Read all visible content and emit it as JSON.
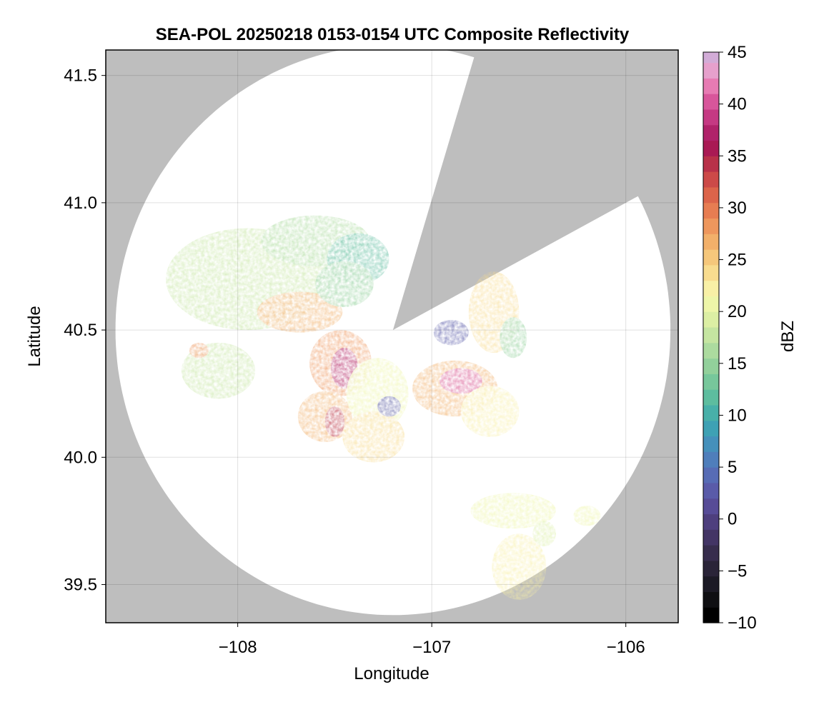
{
  "chart_data": {
    "type": "heatmap",
    "title": "SEA-POL 20250218 0153-0154 UTC Composite Reflectivity",
    "xlabel": "Longitude",
    "ylabel": "Latitude",
    "xlim": [
      -108.68,
      -105.73
    ],
    "ylim": [
      39.35,
      41.6
    ],
    "xticks": [
      -108,
      -107,
      -106
    ],
    "xtick_labels": [
      "−108",
      "−107",
      "−106"
    ],
    "yticks": [
      39.5,
      40.0,
      40.5,
      41.0,
      41.5
    ],
    "ytick_labels": [
      "39.5",
      "40.0",
      "40.5",
      "41.0",
      "41.5"
    ],
    "grid": true,
    "background_color": "#bebebe",
    "coverage_color": "#ffffff",
    "radar": {
      "center": [
        -107.2,
        40.5
      ],
      "range_lat_deg": 1.12,
      "range_lon_deg": 1.43,
      "blocked_sector_1": {
        "from_bearing_deg": 17,
        "to_bearing_deg": 30
      },
      "blocked_sector_2": {
        "from_bearing_deg": 30,
        "to_bearing_deg": 62
      }
    },
    "colorbar": {
      "label": "dBZ",
      "min": -10,
      "max": 45,
      "step": 1.5,
      "ticks": [
        -10,
        -5,
        0,
        5,
        10,
        15,
        20,
        25,
        30,
        35,
        40,
        45
      ],
      "tick_labels": [
        "−10",
        "−5",
        "0",
        "5",
        "10",
        "15",
        "20",
        "25",
        "30",
        "35",
        "40",
        "45"
      ],
      "colors": [
        "#000000",
        "#0f0f12",
        "#1c1a25",
        "#2a2438",
        "#372d4d",
        "#433565",
        "#4e3f7e",
        "#574c97",
        "#5a5ba9",
        "#576cb5",
        "#4f7ebb",
        "#4590bb",
        "#3ea1b4",
        "#48b0a9",
        "#5dbd9f",
        "#77c79b",
        "#92d09b",
        "#acdb9f",
        "#c5e5a1",
        "#dcefa4",
        "#eef6a9",
        "#f8f0a6",
        "#f8dc8f",
        "#f5c77b",
        "#f2b06a",
        "#ee975d",
        "#e77d52",
        "#dc644a",
        "#cc4a48",
        "#b83149",
        "#a91a54",
        "#b0226a",
        "#c53983",
        "#d8569b",
        "#e77bb3",
        "#e6a0cc",
        "#d2acd7",
        "#b68ac3",
        "#9865ae",
        "#7b4597",
        "#5f2a7d",
        "#451462",
        "#320645"
      ]
    },
    "echo_regions": [
      {
        "lon": -107.95,
        "lat": 40.7,
        "rlon": 0.42,
        "rlat": 0.2,
        "dbz": 18
      },
      {
        "lon": -107.68,
        "lat": 40.57,
        "rlon": 0.22,
        "rlat": 0.08,
        "dbz": 26
      },
      {
        "lon": -107.6,
        "lat": 40.85,
        "rlon": 0.28,
        "rlat": 0.1,
        "dbz": 16
      },
      {
        "lon": -107.38,
        "lat": 40.78,
        "rlon": 0.16,
        "rlat": 0.1,
        "dbz": 11
      },
      {
        "lon": -107.45,
        "lat": 40.68,
        "rlon": 0.15,
        "rlat": 0.09,
        "dbz": 15
      },
      {
        "lon": -107.47,
        "lat": 40.37,
        "rlon": 0.16,
        "rlat": 0.13,
        "dbz": 28
      },
      {
        "lon": -107.45,
        "lat": 40.35,
        "rlon": 0.07,
        "rlat": 0.08,
        "dbz": 37
      },
      {
        "lon": -107.55,
        "lat": 40.16,
        "rlon": 0.14,
        "rlat": 0.1,
        "dbz": 26
      },
      {
        "lon": -107.5,
        "lat": 40.14,
        "rlon": 0.05,
        "rlat": 0.06,
        "dbz": 34
      },
      {
        "lon": -107.28,
        "lat": 40.25,
        "rlon": 0.16,
        "rlat": 0.14,
        "dbz": 21
      },
      {
        "lon": -107.3,
        "lat": 40.08,
        "rlon": 0.16,
        "rlat": 0.1,
        "dbz": 24
      },
      {
        "lon": -107.22,
        "lat": 40.2,
        "rlon": 0.06,
        "rlat": 0.04,
        "dbz": 3
      },
      {
        "lon": -106.88,
        "lat": 40.27,
        "rlon": 0.22,
        "rlat": 0.11,
        "dbz": 27
      },
      {
        "lon": -106.85,
        "lat": 40.3,
        "rlon": 0.11,
        "rlat": 0.05,
        "dbz": 40
      },
      {
        "lon": -106.7,
        "lat": 40.18,
        "rlon": 0.15,
        "rlat": 0.1,
        "dbz": 22
      },
      {
        "lon": -106.68,
        "lat": 40.57,
        "rlon": 0.13,
        "rlat": 0.16,
        "dbz": 23
      },
      {
        "lon": -106.9,
        "lat": 40.49,
        "rlon": 0.09,
        "rlat": 0.05,
        "dbz": 2
      },
      {
        "lon": -106.58,
        "lat": 40.47,
        "rlon": 0.07,
        "rlat": 0.08,
        "dbz": 14
      },
      {
        "lon": -108.1,
        "lat": 40.34,
        "rlon": 0.19,
        "rlat": 0.11,
        "dbz": 17
      },
      {
        "lon": -108.2,
        "lat": 40.42,
        "rlon": 0.05,
        "rlat": 0.03,
        "dbz": 28
      },
      {
        "lon": -106.58,
        "lat": 39.79,
        "rlon": 0.22,
        "rlat": 0.07,
        "dbz": 21
      },
      {
        "lon": -106.55,
        "lat": 39.57,
        "rlon": 0.14,
        "rlat": 0.13,
        "dbz": 22
      },
      {
        "lon": -106.42,
        "lat": 39.7,
        "rlon": 0.06,
        "rlat": 0.05,
        "dbz": 19
      },
      {
        "lon": -106.2,
        "lat": 39.77,
        "rlon": 0.07,
        "rlat": 0.04,
        "dbz": 21
      }
    ]
  }
}
